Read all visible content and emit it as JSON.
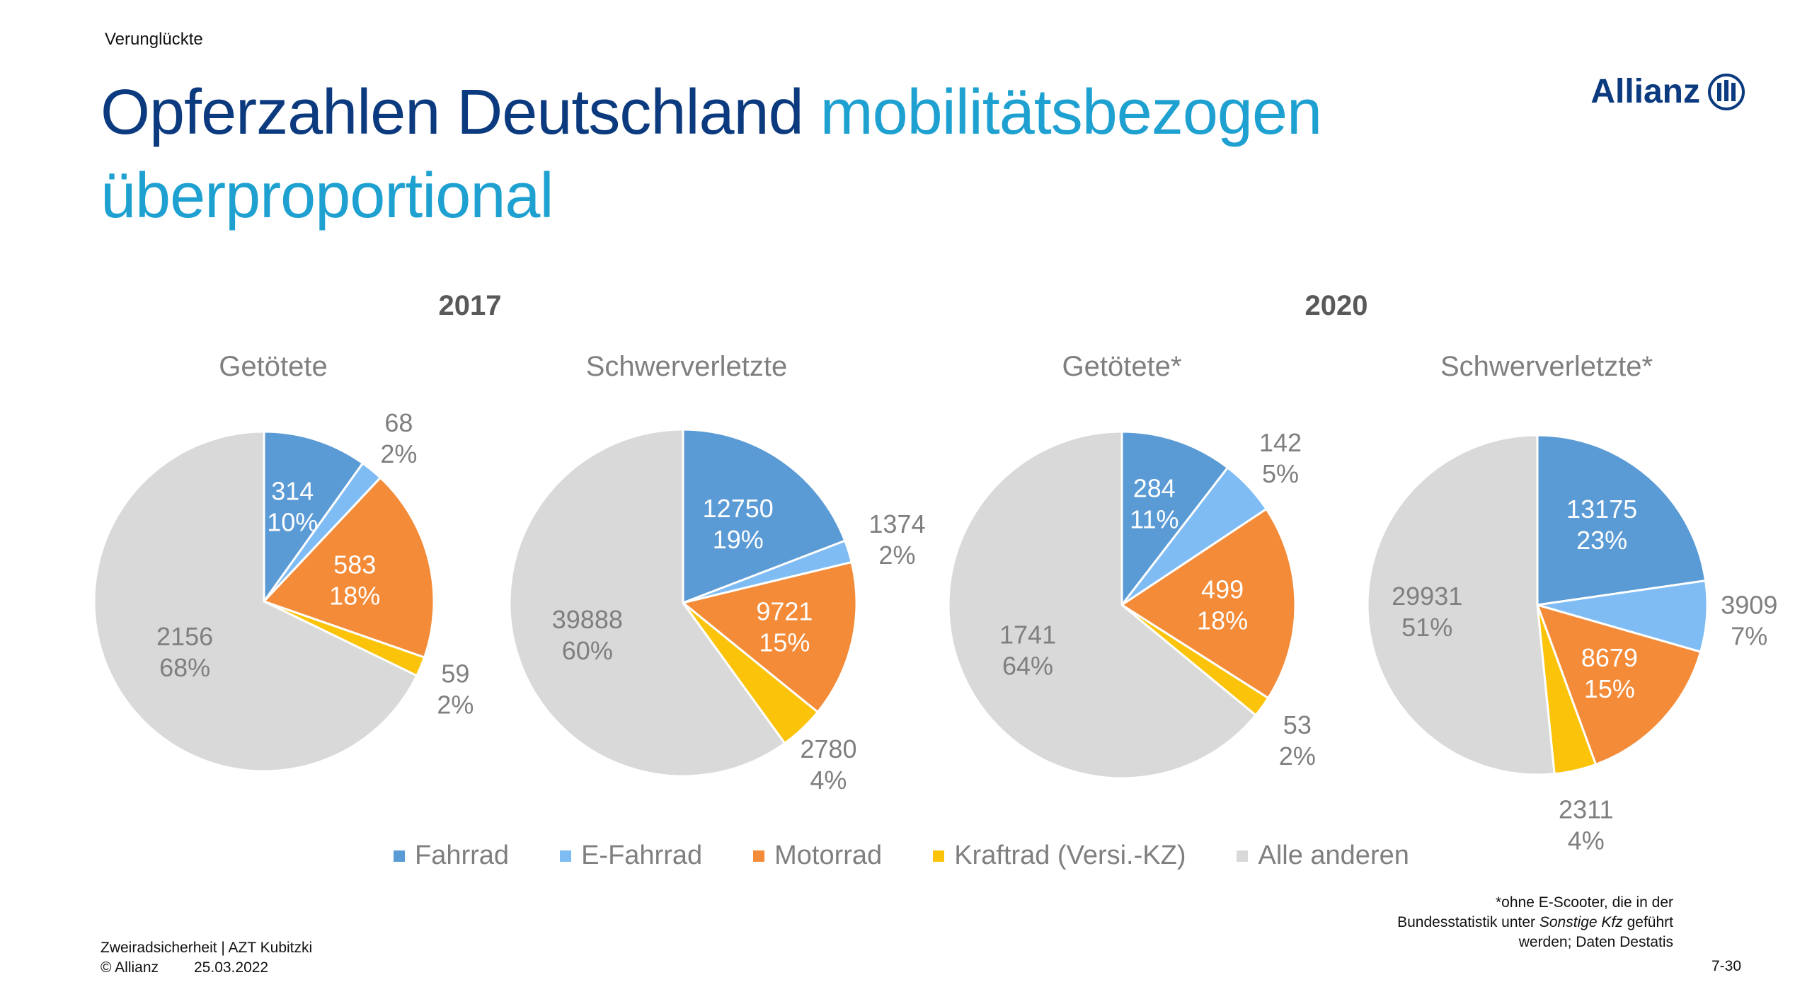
{
  "header": {
    "section": "Verunglückte",
    "title_part1": "Opferzahlen Deutschland ",
    "title_part2": "mobilitätsbezogen überproportional",
    "logo_text": "Allianz",
    "logo_icon": "allianz-eagle-icon"
  },
  "years": [
    "2017",
    "2020"
  ],
  "colors": {
    "Fahrrad": "#5b9bd5",
    "E-Fahrrad": "#7fbcf4",
    "Motorrad": "#f38b38",
    "Kraftrad (Versi.-KZ)": "#fbc30a",
    "Alle anderen": "#d9d9d9"
  },
  "chart_data": [
    {
      "type": "pie",
      "title": "Getötete",
      "group": "2017",
      "categories": [
        "Fahrrad",
        "E-Fahrrad",
        "Motorrad",
        "Kraftrad (Versi.-KZ)",
        "Alle anderen"
      ],
      "values": [
        314,
        68,
        583,
        59,
        2156
      ],
      "percent_labels": [
        "10%",
        "2%",
        "18%",
        "2%",
        "68%"
      ]
    },
    {
      "type": "pie",
      "title": "Schwerverletzte",
      "group": "2017",
      "categories": [
        "Fahrrad",
        "E-Fahrrad",
        "Motorrad",
        "Kraftrad (Versi.-KZ)",
        "Alle anderen"
      ],
      "values": [
        12750,
        1374,
        9721,
        2780,
        39888
      ],
      "percent_labels": [
        "19%",
        "2%",
        "15%",
        "4%",
        "60%"
      ]
    },
    {
      "type": "pie",
      "title": "Getötete*",
      "group": "2020",
      "categories": [
        "Fahrrad",
        "E-Fahrrad",
        "Motorrad",
        "Kraftrad (Versi.-KZ)",
        "Alle anderen"
      ],
      "values": [
        284,
        142,
        499,
        53,
        1741
      ],
      "percent_labels": [
        "11%",
        "5%",
        "18%",
        "2%",
        "64%"
      ]
    },
    {
      "type": "pie",
      "title": "Schwerverletzte*",
      "group": "2020",
      "categories": [
        "Fahrrad",
        "E-Fahrrad",
        "Motorrad",
        "Kraftrad (Versi.-KZ)",
        "Alle anderen"
      ],
      "values": [
        13175,
        3909,
        8679,
        2311,
        29931
      ],
      "percent_labels": [
        "23%",
        "7%",
        "15%",
        "4%",
        "51%"
      ]
    }
  ],
  "legend": [
    "Fahrrad",
    "E-Fahrrad",
    "Motorrad",
    "Kraftrad (Versi.-KZ)",
    "Alle anderen"
  ],
  "footnote": {
    "line1": "*ohne E-Scooter, die in der",
    "line2_pre": "Bundesstatistik unter ",
    "line2_em": "Sonstige Kfz",
    "line2_post": " geführt",
    "line3": "werden; Daten Destatis"
  },
  "footer": {
    "line1": "Zweiradsicherheit | AZT Kubitzki",
    "copyright": "© Allianz",
    "date": "25.03.2022",
    "page": "7-30"
  }
}
